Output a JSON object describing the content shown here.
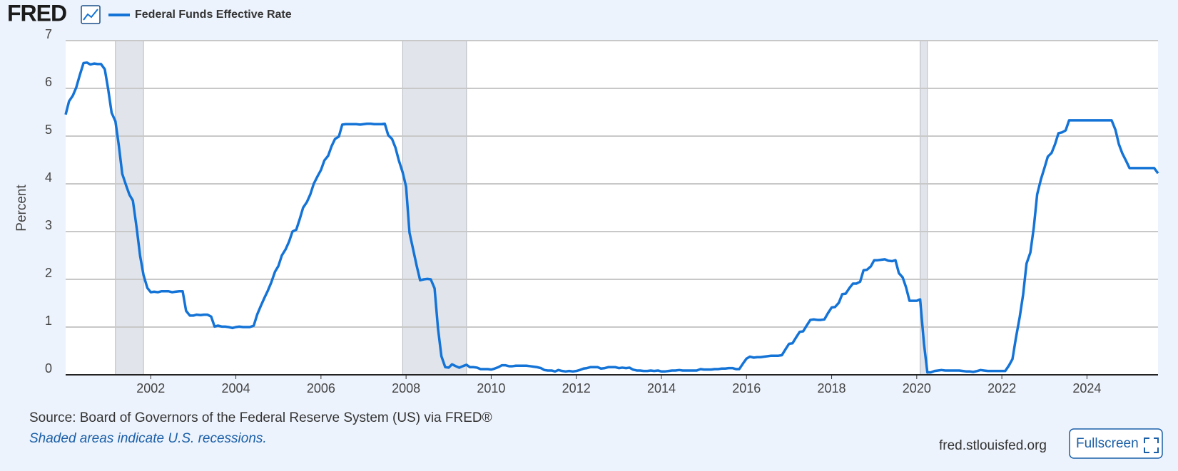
{
  "logo": "FRED",
  "source": "Source: Board of Governors of the Federal Reserve System (US) via FRED®",
  "note": "Shaded areas indicate U.S. recessions.",
  "site": "fred.stlouisfed.org",
  "button": "Fullscreen",
  "chart_data": {
    "type": "line",
    "ylabel": "Percent",
    "xlim": [
      2000,
      2025.67
    ],
    "xticks": [
      2002,
      2004,
      2006,
      2008,
      2010,
      2012,
      2014,
      2016,
      2018,
      2020,
      2022,
      2024
    ],
    "ylim": [
      0,
      7
    ],
    "yticks": [
      0,
      1,
      2,
      3,
      4,
      5,
      6,
      7
    ],
    "grid": true,
    "recessions": [
      [
        2001.17,
        2001.83
      ],
      [
        2007.92,
        2009.42
      ],
      [
        2020.08,
        2020.25
      ]
    ],
    "recession_color": "#e1e5eb",
    "x": [
      2000.0,
      2000.08,
      2000.17,
      2000.25,
      2000.33,
      2000.42,
      2000.5,
      2000.58,
      2000.67,
      2000.75,
      2000.83,
      2000.92,
      2001.0,
      2001.08,
      2001.17,
      2001.25,
      2001.33,
      2001.42,
      2001.5,
      2001.58,
      2001.67,
      2001.75,
      2001.83,
      2001.92,
      2002.0,
      2002.08,
      2002.17,
      2002.25,
      2002.33,
      2002.42,
      2002.5,
      2002.58,
      2002.67,
      2002.75,
      2002.83,
      2002.92,
      2003.0,
      2003.08,
      2003.17,
      2003.25,
      2003.33,
      2003.42,
      2003.5,
      2003.58,
      2003.67,
      2003.75,
      2003.83,
      2003.92,
      2004.0,
      2004.08,
      2004.17,
      2004.25,
      2004.33,
      2004.42,
      2004.5,
      2004.58,
      2004.67,
      2004.75,
      2004.83,
      2004.92,
      2005.0,
      2005.08,
      2005.17,
      2005.25,
      2005.33,
      2005.42,
      2005.5,
      2005.58,
      2005.67,
      2005.75,
      2005.83,
      2005.92,
      2006.0,
      2006.08,
      2006.17,
      2006.25,
      2006.33,
      2006.42,
      2006.5,
      2006.58,
      2006.67,
      2006.75,
      2006.83,
      2006.92,
      2007.0,
      2007.08,
      2007.17,
      2007.25,
      2007.33,
      2007.42,
      2007.5,
      2007.58,
      2007.67,
      2007.75,
      2007.83,
      2007.92,
      2008.0,
      2008.08,
      2008.17,
      2008.25,
      2008.33,
      2008.42,
      2008.5,
      2008.58,
      2008.67,
      2008.75,
      2008.83,
      2008.92,
      2009.0,
      2009.08,
      2009.17,
      2009.25,
      2009.33,
      2009.42,
      2009.5,
      2009.58,
      2009.67,
      2009.75,
      2009.83,
      2009.92,
      2010.0,
      2010.08,
      2010.17,
      2010.25,
      2010.33,
      2010.42,
      2010.5,
      2010.58,
      2010.67,
      2010.75,
      2010.83,
      2010.92,
      2011.0,
      2011.08,
      2011.17,
      2011.25,
      2011.33,
      2011.42,
      2011.5,
      2011.58,
      2011.67,
      2011.75,
      2011.83,
      2011.92,
      2012.0,
      2012.08,
      2012.17,
      2012.25,
      2012.33,
      2012.42,
      2012.5,
      2012.58,
      2012.67,
      2012.75,
      2012.83,
      2012.92,
      2013.0,
      2013.08,
      2013.17,
      2013.25,
      2013.33,
      2013.42,
      2013.5,
      2013.58,
      2013.67,
      2013.75,
      2013.83,
      2013.92,
      2014.0,
      2014.08,
      2014.17,
      2014.25,
      2014.33,
      2014.42,
      2014.5,
      2014.58,
      2014.67,
      2014.75,
      2014.83,
      2014.92,
      2015.0,
      2015.08,
      2015.17,
      2015.25,
      2015.33,
      2015.42,
      2015.5,
      2015.58,
      2015.67,
      2015.75,
      2015.83,
      2015.92,
      2016.0,
      2016.08,
      2016.17,
      2016.25,
      2016.33,
      2016.42,
      2016.5,
      2016.58,
      2016.67,
      2016.75,
      2016.83,
      2016.92,
      2017.0,
      2017.08,
      2017.17,
      2017.25,
      2017.33,
      2017.42,
      2017.5,
      2017.58,
      2017.67,
      2017.75,
      2017.83,
      2017.92,
      2018.0,
      2018.08,
      2018.17,
      2018.25,
      2018.33,
      2018.42,
      2018.5,
      2018.58,
      2018.67,
      2018.75,
      2018.83,
      2018.92,
      2019.0,
      2019.08,
      2019.17,
      2019.25,
      2019.33,
      2019.42,
      2019.5,
      2019.58,
      2019.67,
      2019.75,
      2019.83,
      2019.92,
      2020.0,
      2020.08,
      2020.17,
      2020.25,
      2020.33,
      2020.42,
      2020.5,
      2020.58,
      2020.67,
      2020.75,
      2020.83,
      2020.92,
      2021.0,
      2021.08,
      2021.17,
      2021.25,
      2021.33,
      2021.42,
      2021.5,
      2021.58,
      2021.67,
      2021.75,
      2021.83,
      2021.92,
      2022.0,
      2022.08,
      2022.17,
      2022.25,
      2022.33,
      2022.42,
      2022.5,
      2022.58,
      2022.67,
      2022.75,
      2022.83,
      2022.92,
      2023.0,
      2023.08,
      2023.17,
      2023.25,
      2023.33,
      2023.42,
      2023.5,
      2023.58,
      2023.67,
      2023.75,
      2023.83,
      2023.92,
      2024.0,
      2024.08,
      2024.17,
      2024.25,
      2024.33,
      2024.42,
      2024.5,
      2024.58,
      2024.67,
      2024.75,
      2024.83,
      2024.92,
      2025.0,
      2025.08,
      2025.17,
      2025.25,
      2025.33,
      2025.42,
      2025.5,
      2025.58,
      2025.67
    ],
    "series": [
      {
        "name": "Federal Funds Effective Rate",
        "color": "#1473d6",
        "values": [
          5.45,
          5.73,
          5.85,
          6.02,
          6.27,
          6.53,
          6.54,
          6.5,
          6.52,
          6.51,
          6.51,
          6.4,
          5.98,
          5.49,
          5.31,
          4.8,
          4.21,
          3.97,
          3.77,
          3.65,
          3.07,
          2.49,
          2.09,
          1.82,
          1.73,
          1.74,
          1.73,
          1.75,
          1.75,
          1.75,
          1.73,
          1.74,
          1.75,
          1.75,
          1.34,
          1.24,
          1.24,
          1.26,
          1.25,
          1.26,
          1.26,
          1.22,
          1.01,
          1.03,
          1.01,
          1.01,
          1.0,
          0.98,
          1.0,
          1.01,
          1.0,
          1.0,
          1.0,
          1.03,
          1.26,
          1.43,
          1.61,
          1.76,
          1.93,
          2.16,
          2.28,
          2.5,
          2.63,
          2.79,
          3.0,
          3.04,
          3.26,
          3.5,
          3.62,
          3.78,
          4.0,
          4.16,
          4.29,
          4.49,
          4.59,
          4.79,
          4.94,
          4.99,
          5.24,
          5.25,
          5.25,
          5.25,
          5.25,
          5.24,
          5.25,
          5.26,
          5.26,
          5.25,
          5.25,
          5.25,
          5.26,
          5.02,
          4.94,
          4.76,
          4.49,
          4.24,
          3.94,
          2.98,
          2.61,
          2.28,
          1.98,
          2.0,
          2.01,
          2.0,
          1.81,
          0.97,
          0.39,
          0.16,
          0.15,
          0.22,
          0.18,
          0.15,
          0.18,
          0.21,
          0.16,
          0.16,
          0.15,
          0.12,
          0.12,
          0.12,
          0.11,
          0.13,
          0.16,
          0.2,
          0.2,
          0.18,
          0.18,
          0.19,
          0.19,
          0.19,
          0.19,
          0.18,
          0.17,
          0.16,
          0.14,
          0.1,
          0.09,
          0.09,
          0.07,
          0.1,
          0.08,
          0.07,
          0.08,
          0.07,
          0.08,
          0.1,
          0.13,
          0.14,
          0.16,
          0.16,
          0.16,
          0.13,
          0.14,
          0.16,
          0.16,
          0.16,
          0.14,
          0.15,
          0.14,
          0.15,
          0.11,
          0.09,
          0.09,
          0.08,
          0.08,
          0.09,
          0.08,
          0.09,
          0.07,
          0.07,
          0.08,
          0.09,
          0.09,
          0.1,
          0.09,
          0.09,
          0.09,
          0.09,
          0.09,
          0.12,
          0.11,
          0.11,
          0.11,
          0.12,
          0.12,
          0.13,
          0.13,
          0.14,
          0.14,
          0.12,
          0.12,
          0.24,
          0.34,
          0.38,
          0.36,
          0.37,
          0.37,
          0.38,
          0.39,
          0.4,
          0.4,
          0.4,
          0.41,
          0.54,
          0.65,
          0.66,
          0.79,
          0.9,
          0.91,
          1.04,
          1.15,
          1.16,
          1.15,
          1.15,
          1.16,
          1.3,
          1.41,
          1.42,
          1.51,
          1.69,
          1.7,
          1.82,
          1.91,
          1.91,
          1.95,
          2.19,
          2.2,
          2.27,
          2.4,
          2.4,
          2.41,
          2.42,
          2.39,
          2.38,
          2.4,
          2.13,
          2.04,
          1.83,
          1.55,
          1.55,
          1.55,
          1.58,
          0.65,
          0.05,
          0.05,
          0.08,
          0.09,
          0.1,
          0.09,
          0.09,
          0.09,
          0.09,
          0.09,
          0.08,
          0.07,
          0.07,
          0.06,
          0.08,
          0.1,
          0.09,
          0.08,
          0.08,
          0.08,
          0.08,
          0.08,
          0.08,
          0.2,
          0.33,
          0.77,
          1.21,
          1.68,
          2.33,
          2.56,
          3.08,
          3.78,
          4.1,
          4.33,
          4.57,
          4.65,
          4.83,
          5.06,
          5.08,
          5.12,
          5.33,
          5.33,
          5.33,
          5.33,
          5.33,
          5.33,
          5.33,
          5.33,
          5.33,
          5.33,
          5.33,
          5.33,
          5.33,
          5.13,
          4.83,
          4.64,
          4.48,
          4.33,
          4.33,
          4.33,
          4.33,
          4.33,
          4.33,
          4.33,
          4.33,
          4.22
        ]
      }
    ]
  }
}
